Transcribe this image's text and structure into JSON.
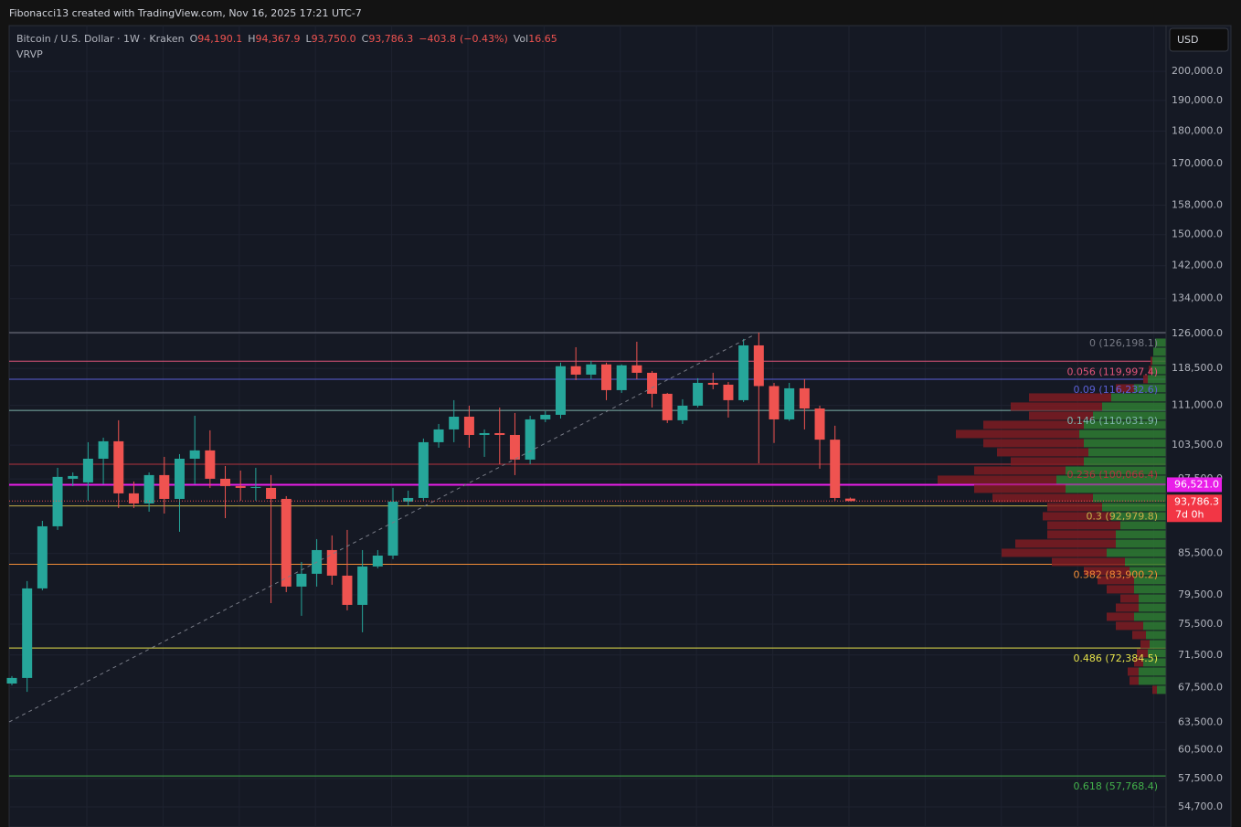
{
  "chart_data": {
    "type": "candlestick",
    "header": "Fibonacci13 created with TradingView.com, Nov 16, 2025 17:21 UTC-7",
    "symbol": "Bitcoin / U.S. Dollar · 1W · Kraken",
    "ohlc": [
      {
        "key": "O",
        "value": 94190.1,
        "label": "94,190.1"
      },
      {
        "key": "H",
        "value": 94367.9,
        "label": "94,367.9"
      },
      {
        "key": "L",
        "value": 93750.0,
        "label": "93,750.0"
      },
      {
        "key": "C",
        "value": 93786.3,
        "label": "93,786.3"
      }
    ],
    "change": {
      "value": -403.8,
      "label": "−403.8"
    },
    "change_pct": {
      "value": -0.43,
      "label": "(−0.43%)"
    },
    "volume_key": "Vol",
    "volume": 16.65,
    "indicator": "VRVP",
    "currency": "USD",
    "countdown": "7d 0h",
    "log_scale": true,
    "grid": true,
    "up_color": "#26a69a",
    "down_color": "#ef5350",
    "ylim": [
      52800,
      216800
    ],
    "yticks": [
      {
        "value": 200000,
        "label": "200,000.0"
      },
      {
        "value": 190000,
        "label": "190,000.0"
      },
      {
        "value": 180000,
        "label": "180,000.0"
      },
      {
        "value": 170000,
        "label": "170,000.0"
      },
      {
        "value": 158000,
        "label": "158,000.0"
      },
      {
        "value": 150000,
        "label": "150,000.0"
      },
      {
        "value": 142000,
        "label": "142,000.0"
      },
      {
        "value": 134000,
        "label": "134,000.0"
      },
      {
        "value": 126000,
        "label": "126,000.0"
      },
      {
        "value": 118500,
        "label": "118,500.0"
      },
      {
        "value": 111000,
        "label": "111,000.0"
      },
      {
        "value": 103500,
        "label": "103,500.0"
      },
      {
        "value": 97500,
        "label": "97,500.0"
      },
      {
        "value": 85500,
        "label": "85,500.0"
      },
      {
        "value": 79500,
        "label": "79,500.0"
      },
      {
        "value": 75500,
        "label": "75,500.0"
      },
      {
        "value": 71500,
        "label": "71,500.0"
      },
      {
        "value": 67500,
        "label": "67,500.0"
      },
      {
        "value": 63500,
        "label": "63,500.0"
      },
      {
        "value": 60500,
        "label": "60,500.0"
      },
      {
        "value": 57500,
        "label": "57,500.0"
      },
      {
        "value": 54700,
        "label": "54,700.0"
      }
    ],
    "open": [
      67990,
      68660,
      80400,
      89700,
      97540,
      96910,
      101050,
      104200,
      95060,
      93390,
      98170,
      94140,
      101050,
      102540,
      97540,
      96290,
      95980,
      95980,
      94140,
      80660,
      82500,
      86020,
      82230,
      78100,
      83570,
      85190,
      93690,
      94290,
      104030,
      106400,
      108820,
      105370,
      105710,
      105370,
      100890,
      108300,
      109180,
      118940,
      117190,
      119320,
      114030,
      119130,
      117570,
      113300,
      108130,
      110950,
      115500,
      115130,
      112030,
      123390,
      114850,
      108300,
      114400,
      110400,
      104500,
      94190.1
    ],
    "high": [
      68880,
      81450,
      90570,
      99440,
      98640,
      104030,
      104870,
      108130,
      97070,
      98640,
      101380,
      101870,
      109000,
      106230,
      99760,
      98960,
      99440,
      98170,
      94600,
      84240,
      87700,
      88270,
      89130,
      86020,
      86020,
      95980,
      95520,
      104700,
      107430,
      112030,
      110950,
      106400,
      110590,
      109530,
      109000,
      109880,
      119700,
      122990,
      120080,
      119700,
      119320,
      124190,
      117950,
      113480,
      112210,
      116450,
      117570,
      115690,
      124800,
      126198.1,
      115500,
      115500,
      116260,
      110950,
      107100,
      94367.9
    ],
    "low": [
      67780,
      67000,
      80140,
      89130,
      96290,
      93840,
      96600,
      92640,
      92640,
      92040,
      91740,
      88840,
      96600,
      95980,
      91000,
      93840,
      93840,
      78350,
      79880,
      76610,
      80660,
      80920,
      77350,
      74420,
      83300,
      84650,
      93090,
      93840,
      103030,
      104030,
      103030,
      101380,
      100080,
      98170,
      100080,
      107780,
      108470,
      116070,
      116260,
      112030,
      113480,
      116260,
      110590,
      107610,
      107430,
      110590,
      114210,
      108650,
      111670,
      100240,
      103900,
      108000,
      106400,
      99280,
      93840,
      93750
    ],
    "close": [
      68660,
      80400,
      89700,
      97860,
      98010,
      101050,
      104200,
      95060,
      93390,
      98170,
      94140,
      101050,
      102540,
      97540,
      96290,
      95980,
      96140,
      94140,
      80660,
      82500,
      86020,
      82230,
      78100,
      83570,
      85190,
      93690,
      94290,
      104030,
      106400,
      108820,
      105370,
      105710,
      105370,
      100890,
      108300,
      109180,
      118940,
      117190,
      119320,
      114030,
      119130,
      117570,
      113300,
      108130,
      110950,
      115500,
      115130,
      112030,
      123390,
      114850,
      108300,
      114400,
      110400,
      104500,
      94290,
      93786.3
    ],
    "fib_levels": [
      {
        "label": "0 (126,198.1)",
        "value": 126198.1,
        "color": "#787b86"
      },
      {
        "label": "0.056 (119,997.4)",
        "value": 119997.4,
        "color": "#e2557a"
      },
      {
        "label": "0.09 (116,232.6)",
        "value": 116232.6,
        "color": "#5b5fd6"
      },
      {
        "label": "0.146 (110,031.9)",
        "value": 110031.9,
        "color": "#7fb3ab"
      },
      {
        "label": "0.236 (100,066.4)",
        "value": 100066.4,
        "color": "#b2343e"
      },
      {
        "label": "0.3 (92,979.8)",
        "value": 92979.8,
        "color": "#c7b04a"
      },
      {
        "label": "0.382 (83,900.2)",
        "value": 83900.2,
        "color": "#f08c36"
      },
      {
        "label": "0.486 (72,384.5)",
        "value": 72384.5,
        "color": "#e6e24a"
      },
      {
        "label": "0.618 (57,768.4)",
        "value": 57768.4,
        "color": "#43b14b"
      }
    ],
    "poc": {
      "value": 96521.0,
      "label": "96,521.0",
      "color": "#e91ee9"
    },
    "volume_profile": {
      "up_color": "#2e7d32",
      "down_color": "#7e1c22",
      "bins": [
        124990,
        122990,
        121030,
        119130,
        117190,
        115320,
        113480,
        111670,
        109880,
        108130,
        106400,
        104700,
        103030,
        101380,
        99760,
        98170,
        96600,
        95060,
        93540,
        92040,
        90570,
        89130,
        87700,
        86300,
        84920,
        83570,
        82230,
        80920,
        79620,
        78350,
        77100,
        75870,
        74660,
        73460,
        72290,
        71140,
        70000,
        68880,
        67780,
        66700
      ],
      "up": [
        12,
        14,
        15,
        16,
        20,
        35,
        60,
        70,
        80,
        90,
        95,
        90,
        85,
        90,
        110,
        120,
        110,
        80,
        70,
        60,
        50,
        55,
        55,
        65,
        45,
        40,
        35,
        35,
        30,
        30,
        35,
        25,
        22,
        18,
        20,
        25,
        30,
        30,
        10
      ],
      "down": [
        0,
        0,
        2,
        3,
        5,
        20,
        90,
        100,
        70,
        110,
        135,
        110,
        100,
        80,
        100,
        130,
        100,
        110,
        60,
        75,
        80,
        75,
        110,
        115,
        80,
        50,
        40,
        30,
        20,
        25,
        30,
        30,
        15,
        10,
        12,
        10,
        12,
        10,
        5
      ]
    }
  }
}
